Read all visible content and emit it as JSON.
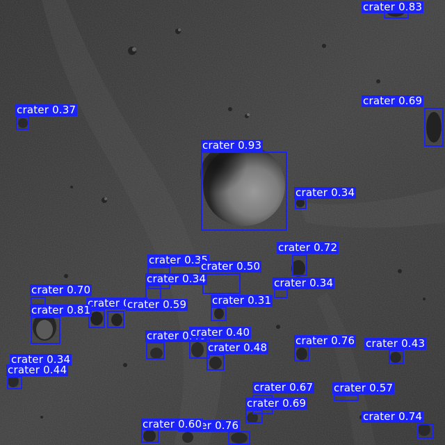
{
  "image": {
    "subject": "grayscale lunar surface",
    "box_color": "#1a22f5",
    "label_text_color": "#ffffff"
  },
  "detections": [
    {
      "label": "crater",
      "score": "0.83"
    },
    {
      "label": "crater",
      "score": "0.37"
    },
    {
      "label": "crater",
      "score": "0.69"
    },
    {
      "label": "crater",
      "score": "0.93"
    },
    {
      "label": "crater",
      "score": "0.34"
    },
    {
      "label": "crater",
      "score": "0.72"
    },
    {
      "label": "crater",
      "score": "0.35"
    },
    {
      "label": "crater",
      "score": "0.50"
    },
    {
      "label": "crater",
      "score": "0.34"
    },
    {
      "label": "crater",
      "score": "0.34"
    },
    {
      "label": "crater",
      "score": "0.70"
    },
    {
      "label": "crater",
      "score": "0.78"
    },
    {
      "label": "crater",
      "score": "0.59"
    },
    {
      "label": "crater",
      "score": "0.81"
    },
    {
      "label": "crater",
      "score": "0.31"
    },
    {
      "label": "crater",
      "score": "0.40"
    },
    {
      "label": "crater",
      "score": "0.40"
    },
    {
      "label": "crater",
      "score": "0.48"
    },
    {
      "label": "crater",
      "score": "0.76"
    },
    {
      "label": "crater",
      "score": "0.43"
    },
    {
      "label": "crater",
      "score": "0.34"
    },
    {
      "label": "crater",
      "score": "0.44"
    },
    {
      "label": "crater",
      "score": "0.67"
    },
    {
      "label": "crater",
      "score": "0.57"
    },
    {
      "label": "crater",
      "score": "0.69"
    },
    {
      "label": "crater",
      "score": "0.74"
    },
    {
      "label": "crater",
      "score": "0.76"
    },
    {
      "label": "crater",
      "score": "0.60"
    }
  ]
}
